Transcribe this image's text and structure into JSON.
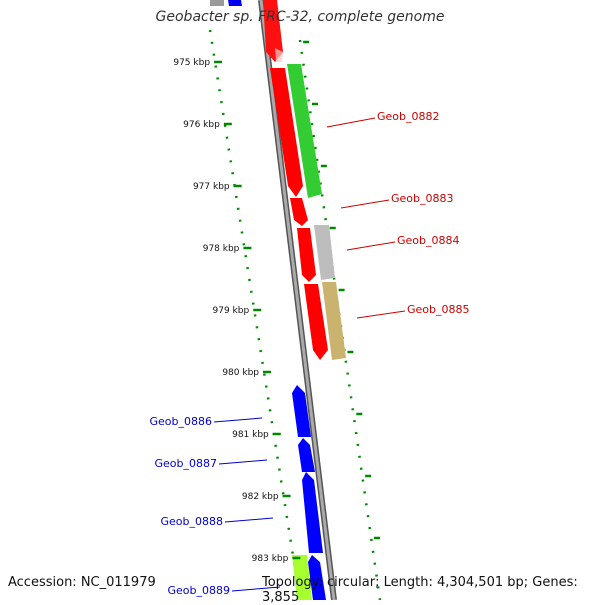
{
  "title": "Geobacter sp. FRC-32, complete genome",
  "accession": "Accession: NC_011979",
  "summary": "Topology: circular; Length: 4,304,501 bp; Genes: 3,855",
  "colors": {
    "forward_label": "#cc0000",
    "reverse_label": "#0000cc",
    "forward_gene": "#ff0000",
    "reverse_gene": "#0000ff",
    "tick": "#008800",
    "backbone": "#808080"
  },
  "ticks": [
    {
      "label": "975 kbp"
    },
    {
      "label": "976 kbp"
    },
    {
      "label": "977 kbp"
    },
    {
      "label": "978 kbp"
    },
    {
      "label": "979 kbp"
    },
    {
      "label": "980 kbp"
    },
    {
      "label": "981 kbp"
    },
    {
      "label": "982 kbp"
    },
    {
      "label": "983 kbp"
    }
  ],
  "gene_labels": [
    {
      "name": "Geob_0882",
      "strand": "forward"
    },
    {
      "name": "Geob_0883",
      "strand": "forward"
    },
    {
      "name": "Geob_0884",
      "strand": "forward"
    },
    {
      "name": "Geob_0885",
      "strand": "forward"
    },
    {
      "name": "Geob_0886",
      "strand": "reverse"
    },
    {
      "name": "Geob_0887",
      "strand": "reverse"
    },
    {
      "name": "Geob_0888",
      "strand": "reverse"
    },
    {
      "name": "Geob_0889",
      "strand": "reverse"
    }
  ]
}
